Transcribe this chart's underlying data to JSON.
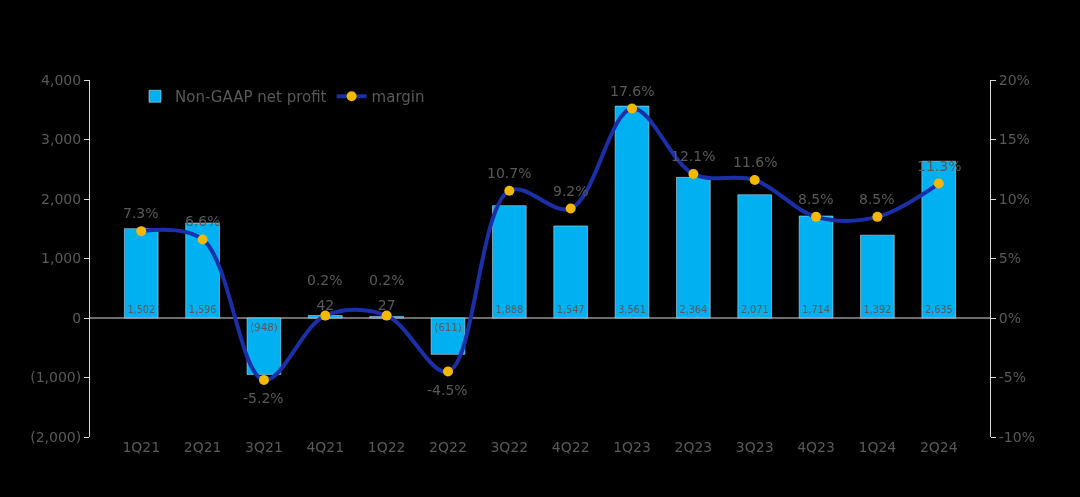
{
  "chart_data": {
    "type": "bar",
    "categories": [
      "1Q21",
      "2Q21",
      "3Q21",
      "4Q21",
      "1Q22",
      "2Q22",
      "3Q22",
      "4Q22",
      "1Q23",
      "2Q23",
      "3Q23",
      "4Q23",
      "1Q24",
      "2Q24"
    ],
    "series": [
      {
        "name": "Non-GAAP net profit",
        "color": "#00b0f0",
        "values": [
          1502,
          1596,
          -948,
          42,
          27,
          -611,
          1888,
          1547,
          3561,
          2364,
          2071,
          1714,
          1392,
          2635
        ],
        "value_labels": [
          "1,502",
          "1,596",
          "(948)",
          "42",
          "27",
          "(611)",
          "1,888",
          "1,547",
          "3,561",
          "2,364",
          "2,071",
          "1,714",
          "1,392",
          "2,635"
        ]
      },
      {
        "name": "margin",
        "type": "line",
        "axis": "y2",
        "color": "#1a2fa8",
        "values": [
          7.3,
          6.6,
          -5.2,
          0.2,
          0.2,
          -4.5,
          10.7,
          9.2,
          17.6,
          12.1,
          11.6,
          8.5,
          8.5,
          11.3
        ],
        "value_labels": [
          "7.3%",
          "6.6%",
          "-5.2%",
          "0.2%",
          "0.2%",
          "-4.5%",
          "10.7%",
          "9.2%",
          "17.6%",
          "12.1%",
          "11.6%",
          "8.5%",
          "8.5%",
          "11.3%"
        ]
      }
    ],
    "ylim": [
      -2000,
      4000
    ],
    "yticks": [
      {
        "value": -2000,
        "label": "(2,000)"
      },
      {
        "value": -1000,
        "label": "(1,000)"
      },
      0,
      {
        "value": 1000,
        "label": "1,000"
      },
      {
        "value": 2000,
        "label": "2,000"
      },
      {
        "value": 3000,
        "label": "3,000"
      },
      {
        "value": 4000,
        "label": "4,000"
      }
    ],
    "y2lim": [
      -10,
      20
    ],
    "y2ticks": [
      {
        "value": -10,
        "label": "-10%"
      },
      {
        "value": -5,
        "label": "-5%"
      },
      {
        "value": 0,
        "label": "0%"
      },
      {
        "value": 5,
        "label": "5%"
      },
      {
        "value": 10,
        "label": "10%"
      },
      {
        "value": 15,
        "label": "15%"
      },
      {
        "value": 20,
        "label": "20%"
      }
    ],
    "marker": "circle",
    "line_style": "solid",
    "grid": false,
    "ref_lines": [
      {
        "axis": "y",
        "value": 0,
        "color": "#d9d9d9"
      }
    ],
    "legend": "top left"
  }
}
